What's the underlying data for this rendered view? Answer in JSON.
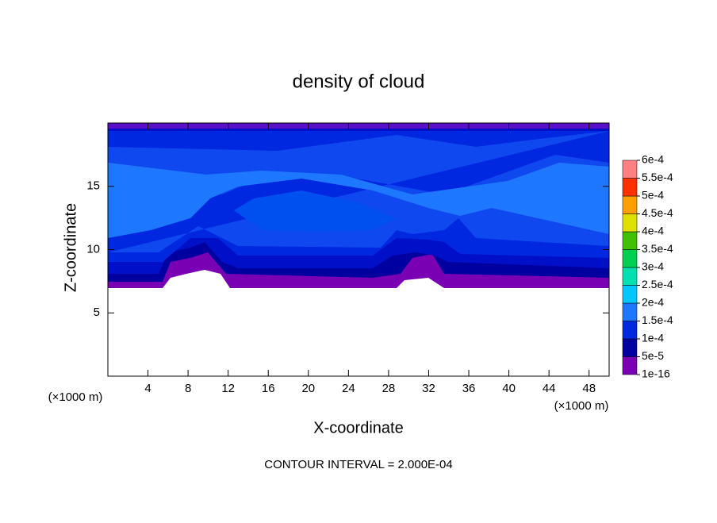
{
  "chart_data": {
    "type": "contour",
    "title": "density of cloud",
    "x_label": "X-coordinate",
    "y_label": "Z-coordinate",
    "x_unit": "(×1000 m)",
    "y_unit": "(×1000 m)",
    "note": "CONTOUR INTERVAL = 2.000E-04",
    "xlim": [
      0,
      50
    ],
    "xticks": [
      4,
      8,
      12,
      16,
      20,
      24,
      28,
      32,
      36,
      40,
      44,
      48
    ],
    "ylim": [
      0,
      20
    ],
    "yticks": [
      5,
      10,
      15
    ],
    "colorbar": {
      "levels": [
        {
          "value": 1e-16,
          "label": "1e-16"
        },
        {
          "value": 5e-05,
          "label": "5e-5"
        },
        {
          "value": 0.0001,
          "label": "1e-4"
        },
        {
          "value": 0.00015,
          "label": "1.5e-4"
        },
        {
          "value": 0.0002,
          "label": "2e-4"
        },
        {
          "value": 0.00025,
          "label": "2.5e-4"
        },
        {
          "value": 0.0003,
          "label": "3e-4"
        },
        {
          "value": 0.00035,
          "label": "3.5e-4"
        },
        {
          "value": 0.0004,
          "label": "4e-4"
        },
        {
          "value": 0.00045,
          "label": "4.5e-4"
        },
        {
          "value": 0.0005,
          "label": "5e-4"
        },
        {
          "value": 0.00055,
          "label": "5.5e-4"
        },
        {
          "value": 0.0006,
          "label": "6e-4"
        }
      ],
      "colors": [
        "#7a00b4",
        "#0000a0",
        "#0028e0",
        "#1e78ff",
        "#00c8ff",
        "#00e0b0",
        "#00d050",
        "#40c000",
        "#e0e000",
        "#ffa000",
        "#ff3000",
        "#ff8080"
      ]
    }
  }
}
